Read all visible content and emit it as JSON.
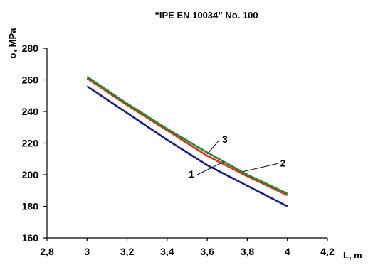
{
  "chart_data": {
    "type": "line",
    "title": "“IPE EN 10034” No. 100",
    "xlabel": "L, m",
    "ylabel": "σ, MPa",
    "xlim": [
      2.8,
      4.2
    ],
    "ylim": [
      160,
      280
    ],
    "x_ticks": [
      "2,8",
      "3",
      "3,2",
      "3,4",
      "3,6",
      "3,8",
      "4",
      "4,2"
    ],
    "y_ticks": [
      "160",
      "180",
      "200",
      "220",
      "240",
      "260",
      "280"
    ],
    "x_tick_values": [
      2.8,
      3.0,
      3.2,
      3.4,
      3.6,
      3.8,
      4.0,
      4.2
    ],
    "y_tick_values": [
      160,
      180,
      200,
      220,
      240,
      260,
      280
    ],
    "grid": false,
    "legend": "none",
    "series": [
      {
        "name": "1",
        "color": "#1a1a8c",
        "x": [
          3.0,
          3.2,
          3.4,
          3.6,
          3.8,
          4.0
        ],
        "y": [
          256,
          239,
          222,
          206,
          193,
          180
        ]
      },
      {
        "name": "2",
        "color": "#e0301e",
        "x": [
          3.0,
          3.2,
          3.4,
          3.6,
          3.8,
          4.0
        ],
        "y": [
          261,
          244,
          228,
          212,
          199,
          187
        ]
      },
      {
        "name": "3",
        "color": "#1e8c2a",
        "x": [
          3.0,
          3.2,
          3.4,
          3.6,
          3.8,
          4.0
        ],
        "y": [
          262,
          245,
          229,
          214,
          200,
          188
        ]
      }
    ],
    "annotations": [
      {
        "text": "1",
        "x": 3.68,
        "y": 208,
        "tx": 3.55,
        "ty": 200
      },
      {
        "text": "2",
        "x": 3.78,
        "y": 202,
        "tx": 3.95,
        "ty": 207
      },
      {
        "text": "3",
        "x": 3.6,
        "y": 213,
        "tx": 3.66,
        "ty": 222
      }
    ]
  }
}
